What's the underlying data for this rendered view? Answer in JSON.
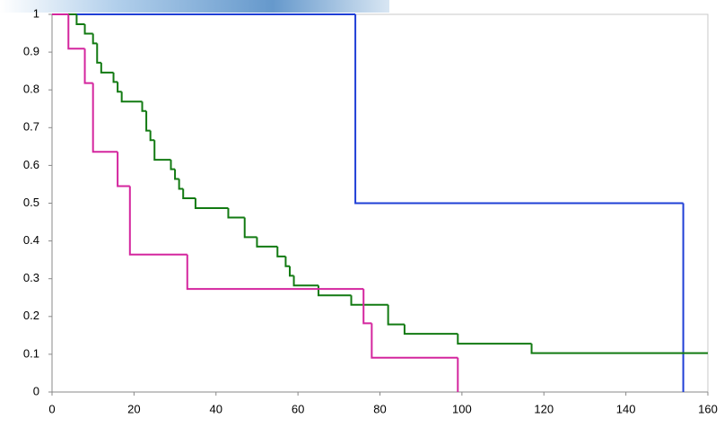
{
  "chart_data": {
    "type": "step",
    "series": [
      {
        "color": "#1f3fd6",
        "x": [
          0,
          74,
          154
        ],
        "values": [
          1,
          0.5,
          0
        ]
      },
      {
        "color": "#127a12",
        "x": [
          0,
          6,
          8,
          10,
          11,
          12,
          15,
          16,
          17,
          22,
          23,
          24,
          25,
          29,
          30,
          31,
          32,
          35,
          43,
          47,
          50,
          55,
          57,
          58,
          59,
          65,
          73,
          82,
          86,
          99,
          117,
          160
        ],
        "values": [
          1,
          0.974,
          0.949,
          0.923,
          0.872,
          0.846,
          0.821,
          0.795,
          0.769,
          0.744,
          0.692,
          0.667,
          0.615,
          0.59,
          0.564,
          0.538,
          0.513,
          0.487,
          0.462,
          0.41,
          0.385,
          0.359,
          0.333,
          0.308,
          0.282,
          0.256,
          0.231,
          0.179,
          0.154,
          0.128,
          0.103,
          0.103
        ]
      },
      {
        "color": "#d4269e",
        "x": [
          0,
          4,
          8,
          10,
          16,
          19,
          33,
          76,
          78,
          99
        ],
        "values": [
          1,
          0.909,
          0.818,
          0.636,
          0.545,
          0.364,
          0.273,
          0.182,
          0.091,
          0
        ]
      }
    ],
    "xlim": [
      0,
      160
    ],
    "xticks": [
      0,
      20,
      40,
      60,
      80,
      100,
      120,
      140,
      160
    ],
    "ylim": [
      0,
      1
    ],
    "yticks": [
      0,
      0.1,
      0.2,
      0.3,
      0.4,
      0.5,
      0.6,
      0.7,
      0.8,
      0.9,
      1
    ],
    "grid": false
  }
}
